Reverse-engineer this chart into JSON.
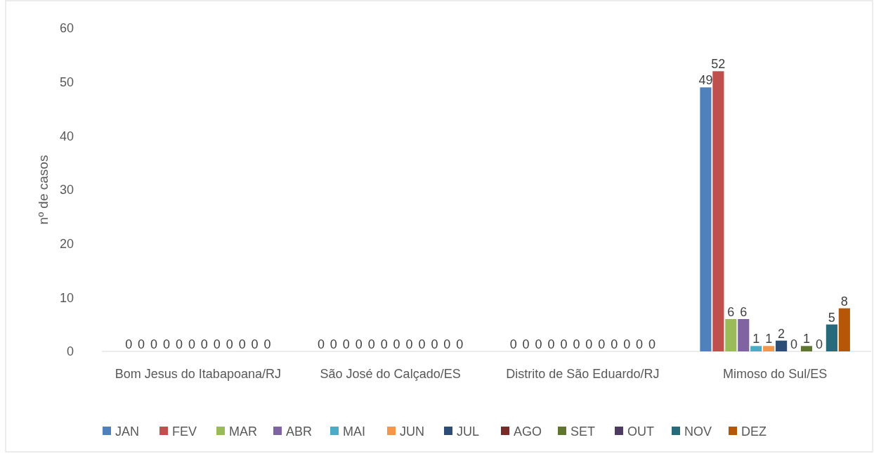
{
  "chart_data": {
    "type": "bar",
    "ylabel": "nº de casos",
    "categories": [
      "Bom Jesus do Itabapoana/RJ",
      "São José do Calçado/ES",
      "Distrito de São Eduardo/RJ",
      "Mimoso do Sul/ES"
    ],
    "series": [
      {
        "name": "JAN",
        "color": "#4f81bd",
        "values": [
          0,
          0,
          0,
          49
        ]
      },
      {
        "name": "FEV",
        "color": "#c0504d",
        "values": [
          0,
          0,
          0,
          52
        ]
      },
      {
        "name": "MAR",
        "color": "#9bbb59",
        "values": [
          0,
          0,
          0,
          6
        ]
      },
      {
        "name": "ABR",
        "color": "#8064a2",
        "values": [
          0,
          0,
          0,
          6
        ]
      },
      {
        "name": "MAI",
        "color": "#4bacc6",
        "values": [
          0,
          0,
          0,
          1
        ]
      },
      {
        "name": "JUN",
        "color": "#f79646",
        "values": [
          0,
          0,
          0,
          1
        ]
      },
      {
        "name": "JUL",
        "color": "#2c4d75",
        "values": [
          0,
          0,
          0,
          2
        ]
      },
      {
        "name": "AGO",
        "color": "#772c2a",
        "values": [
          0,
          0,
          0,
          0
        ]
      },
      {
        "name": "SET",
        "color": "#5f7530",
        "values": [
          0,
          0,
          0,
          1
        ]
      },
      {
        "name": "OUT",
        "color": "#4d3b62",
        "values": [
          0,
          0,
          0,
          0
        ]
      },
      {
        "name": "NOV",
        "color": "#276a7c",
        "values": [
          0,
          0,
          0,
          5
        ]
      },
      {
        "name": "DEZ",
        "color": "#b65708",
        "values": [
          0,
          0,
          0,
          8
        ]
      }
    ],
    "ylim": [
      0,
      60
    ],
    "yticks": [
      0,
      10,
      20,
      30,
      40,
      50,
      60
    ],
    "grid": false,
    "legend": "bottom",
    "data_labels": true
  }
}
